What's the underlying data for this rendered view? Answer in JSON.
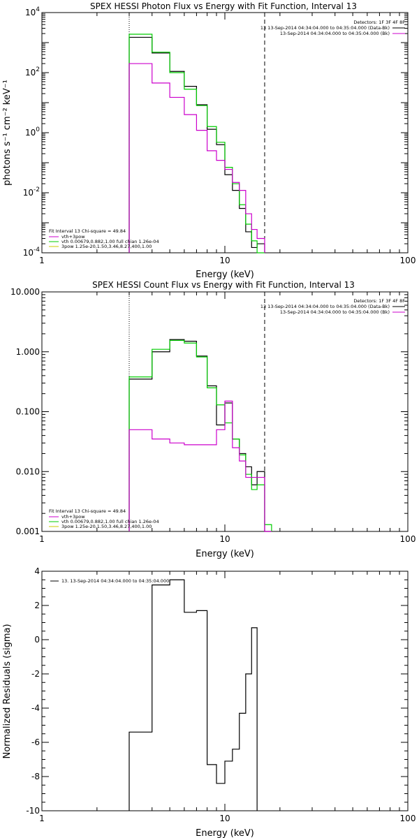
{
  "chart_data": [
    {
      "type": "line",
      "step": true,
      "title": "SPEX HESSI Photon Flux vs Energy with Fit Function, Interval 13",
      "xlabel": "Energy (keV)",
      "ylabel": "photons s⁻¹ cm⁻² keV⁻¹",
      "xscale": "log",
      "yscale": "log",
      "xlim": [
        1,
        100
      ],
      "ylim": [
        0.0001,
        10000
      ],
      "xticks": [
        "1",
        "10",
        "100"
      ],
      "yticks": [
        {
          "value": 10000,
          "base": "10",
          "exp": "4"
        },
        {
          "value": 100,
          "base": "10",
          "exp": "2"
        },
        {
          "value": 1,
          "base": "10",
          "exp": "0"
        },
        {
          "value": 0.01,
          "base": "10",
          "exp": "-2"
        },
        {
          "value": 0.0001,
          "base": "10",
          "exp": "-4"
        }
      ],
      "energy_edges": [
        3.0,
        4.0,
        5.0,
        6.0,
        7.0,
        8.0,
        9.0,
        10.0,
        11.0,
        12.0,
        13.0,
        14.0,
        15.0,
        16.5
      ],
      "series": [
        {
          "key": "black",
          "color": "#000000",
          "values": [
            1500,
            450,
            110,
            35,
            8.5,
            1.3,
            0.4,
            0.04,
            0.012,
            0.003,
            0.0005,
            0.00015,
            0.0002
          ]
        },
        {
          "key": "green",
          "color": "#00cc00",
          "values": [
            1900,
            480,
            100,
            28,
            8.0,
            1.6,
            0.48,
            0.07,
            0.02,
            0.004,
            0.0009,
            0.00025,
            5e-05
          ]
        },
        {
          "key": "magenta",
          "color": "#cc00cc",
          "values": [
            200,
            45,
            15,
            4.0,
            1.2,
            0.25,
            0.12,
            0.06,
            0.022,
            0.012,
            0.002,
            0.0006,
            0.0003
          ]
        }
      ],
      "vlines": [
        {
          "x": 3.0,
          "style": "dotted"
        },
        {
          "x": 16.5,
          "style": "dashed"
        }
      ],
      "legend_topright": {
        "header": "Detectors: 1F 3F 4F 8F",
        "entries": [
          {
            "text": "13 13-Sep-2014 04:34:04.000 to 04:35:04.000 (Data-Bk)",
            "color": "#000000"
          },
          {
            "text": "13-Sep-2014 04:34:04.000 to 04:35:04.000 (Bk)",
            "color": "#cc00cc"
          }
        ]
      },
      "legend_bottomleft": {
        "header": "Fit Interval 13   Chi-square = 49.84",
        "entries": [
          {
            "text": "vth+3pow",
            "color": "#cc00cc"
          },
          {
            "text": "vth 0.00679,0.882,1.00   full chian 1.26e-04",
            "color": "#00cc00"
          },
          {
            "text": "3pow 1.25e-20,1.50,3.46,8.27,400,1.00",
            "color": "#cccc00"
          }
        ]
      }
    },
    {
      "type": "line",
      "step": true,
      "title": "SPEX HESSI Count Flux vs Energy with Fit Function, Interval 13",
      "xlabel": "Energy (keV)",
      "ylabel": "",
      "xscale": "log",
      "yscale": "log",
      "xlim": [
        1,
        100
      ],
      "ylim": [
        0.001,
        10
      ],
      "xticks": [
        "1",
        "10",
        "100"
      ],
      "yticks": [
        {
          "value": 10,
          "label": "10.000"
        },
        {
          "value": 1,
          "label": "1.000"
        },
        {
          "value": 0.1,
          "label": "0.100"
        },
        {
          "value": 0.01,
          "label": "0.010"
        },
        {
          "value": 0.001,
          "label": "0.001"
        }
      ],
      "energy_edges": [
        3.0,
        4.0,
        5.0,
        6.0,
        7.0,
        8.0,
        9.0,
        10.0,
        11.0,
        12.0,
        13.0,
        14.0,
        15.0,
        16.5,
        18.0
      ],
      "series": [
        {
          "key": "black",
          "color": "#000000",
          "values": [
            0.35,
            1.0,
            1.6,
            1.5,
            0.85,
            0.27,
            0.06,
            0.14,
            0.035,
            0.02,
            0.012,
            0.006,
            0.01,
            0.0005
          ]
        },
        {
          "key": "green",
          "color": "#00cc00",
          "values": [
            0.38,
            1.1,
            1.55,
            1.4,
            0.82,
            0.25,
            0.13,
            0.065,
            0.035,
            0.019,
            0.009,
            0.005,
            0.006,
            0.0013
          ]
        },
        {
          "key": "magenta",
          "color": "#cc00cc",
          "values": [
            0.05,
            0.035,
            0.03,
            0.028,
            0.028,
            0.028,
            0.05,
            0.15,
            0.025,
            0.015,
            0.008,
            0.008,
            0.008,
            0.0005
          ]
        }
      ],
      "vlines": [
        {
          "x": 3.0,
          "style": "dotted"
        },
        {
          "x": 16.5,
          "style": "dashed"
        }
      ],
      "legend_topright": {
        "header": "Detectors: 1F 3F 4F 8F",
        "entries": [
          {
            "text": "13 13-Sep-2014 04:34:04.000 to 04:35:04.000 (Data-Bk)",
            "color": "#000000"
          },
          {
            "text": "13-Sep-2014 04:34:04.000 to 04:35:04.000 (Bk)",
            "color": "#cc00cc"
          }
        ]
      },
      "legend_bottomleft": {
        "header": "Fit Interval 13   Chi-square = 49.84",
        "entries": [
          {
            "text": "vth+3pow",
            "color": "#cc00cc"
          },
          {
            "text": "vth 0.00679,0.882,1.00   full chian 1.26e-04",
            "color": "#00cc00"
          },
          {
            "text": "3pow 1.25e-20,1.50,3.46,8.27,400,1.00",
            "color": "#cccc00"
          }
        ]
      }
    },
    {
      "type": "line",
      "step": true,
      "title": "",
      "xlabel": "Energy (keV)",
      "ylabel": "Normalized Residuals (sigma)",
      "xscale": "log",
      "yscale": "linear",
      "xlim": [
        1,
        100
      ],
      "ylim": [
        -10,
        4
      ],
      "xticks": [
        "1",
        "10",
        "100"
      ],
      "yticks": [
        {
          "value": 4,
          "label": "4"
        },
        {
          "value": 2,
          "label": "2"
        },
        {
          "value": 0,
          "label": "0"
        },
        {
          "value": -2,
          "label": "-2"
        },
        {
          "value": -4,
          "label": "-4"
        },
        {
          "value": -6,
          "label": "-6"
        },
        {
          "value": -8,
          "label": "-8"
        },
        {
          "value": -10,
          "label": "-10"
        }
      ],
      "energy_edges": [
        3.0,
        4.0,
        5.0,
        6.0,
        7.0,
        8.0,
        9.0,
        10.0,
        11.0,
        12.0,
        13.0,
        14.0,
        15.0,
        16.5
      ],
      "series": [
        {
          "key": "residuals",
          "color": "#000000",
          "values": [
            -5.4,
            3.2,
            3.5,
            1.6,
            1.7,
            -7.3,
            -8.4,
            -7.1,
            -6.4,
            -4.3,
            -2.0,
            0.7,
            null
          ]
        }
      ],
      "vlines": [],
      "legend_topleft": {
        "entries": [
          {
            "text": "13. 13-Sep-2014 04:34:04.000 to 04:35:04.000",
            "color": "#000000"
          }
        ]
      }
    }
  ]
}
